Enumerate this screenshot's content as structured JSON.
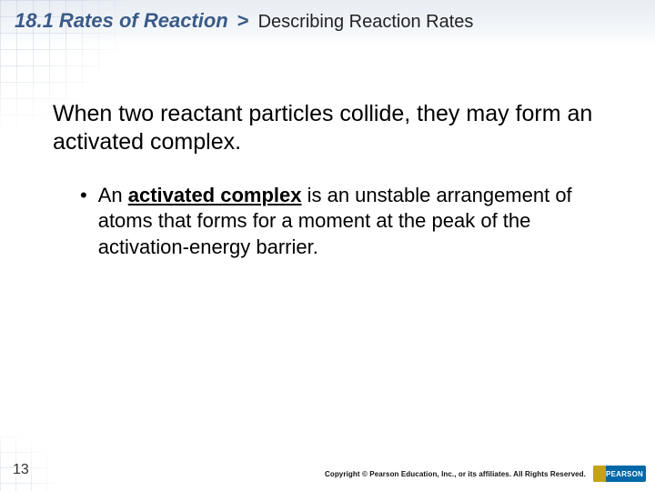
{
  "header": {
    "chapter": "18.1 Rates of Reaction",
    "chevron": ">",
    "section": "Describing Reaction Rates",
    "chapter_color": "#3a5b87",
    "section_color": "#222222"
  },
  "content": {
    "lead": "When two reactant particles collide, they may form an activated complex.",
    "bullet_prefix": "An ",
    "bullet_term": "activated complex",
    "bullet_rest": " is an unstable arrangement of atoms that forms for a moment at the peak of the activation-energy barrier.",
    "lead_fontsize": 25,
    "bullet_fontsize": 22
  },
  "footer": {
    "page_number": "13",
    "copyright": "Copyright © Pearson Education, Inc., or its affiliates. All Rights Reserved.",
    "logo_text": "PEARSON",
    "logo_bg": "#0068a8",
    "logo_accent": "#c4a416"
  },
  "colors": {
    "background": "#ffffff",
    "header_gradient_top": "#e8edf3",
    "grid_line": "rgba(180,195,215,0.35)"
  }
}
